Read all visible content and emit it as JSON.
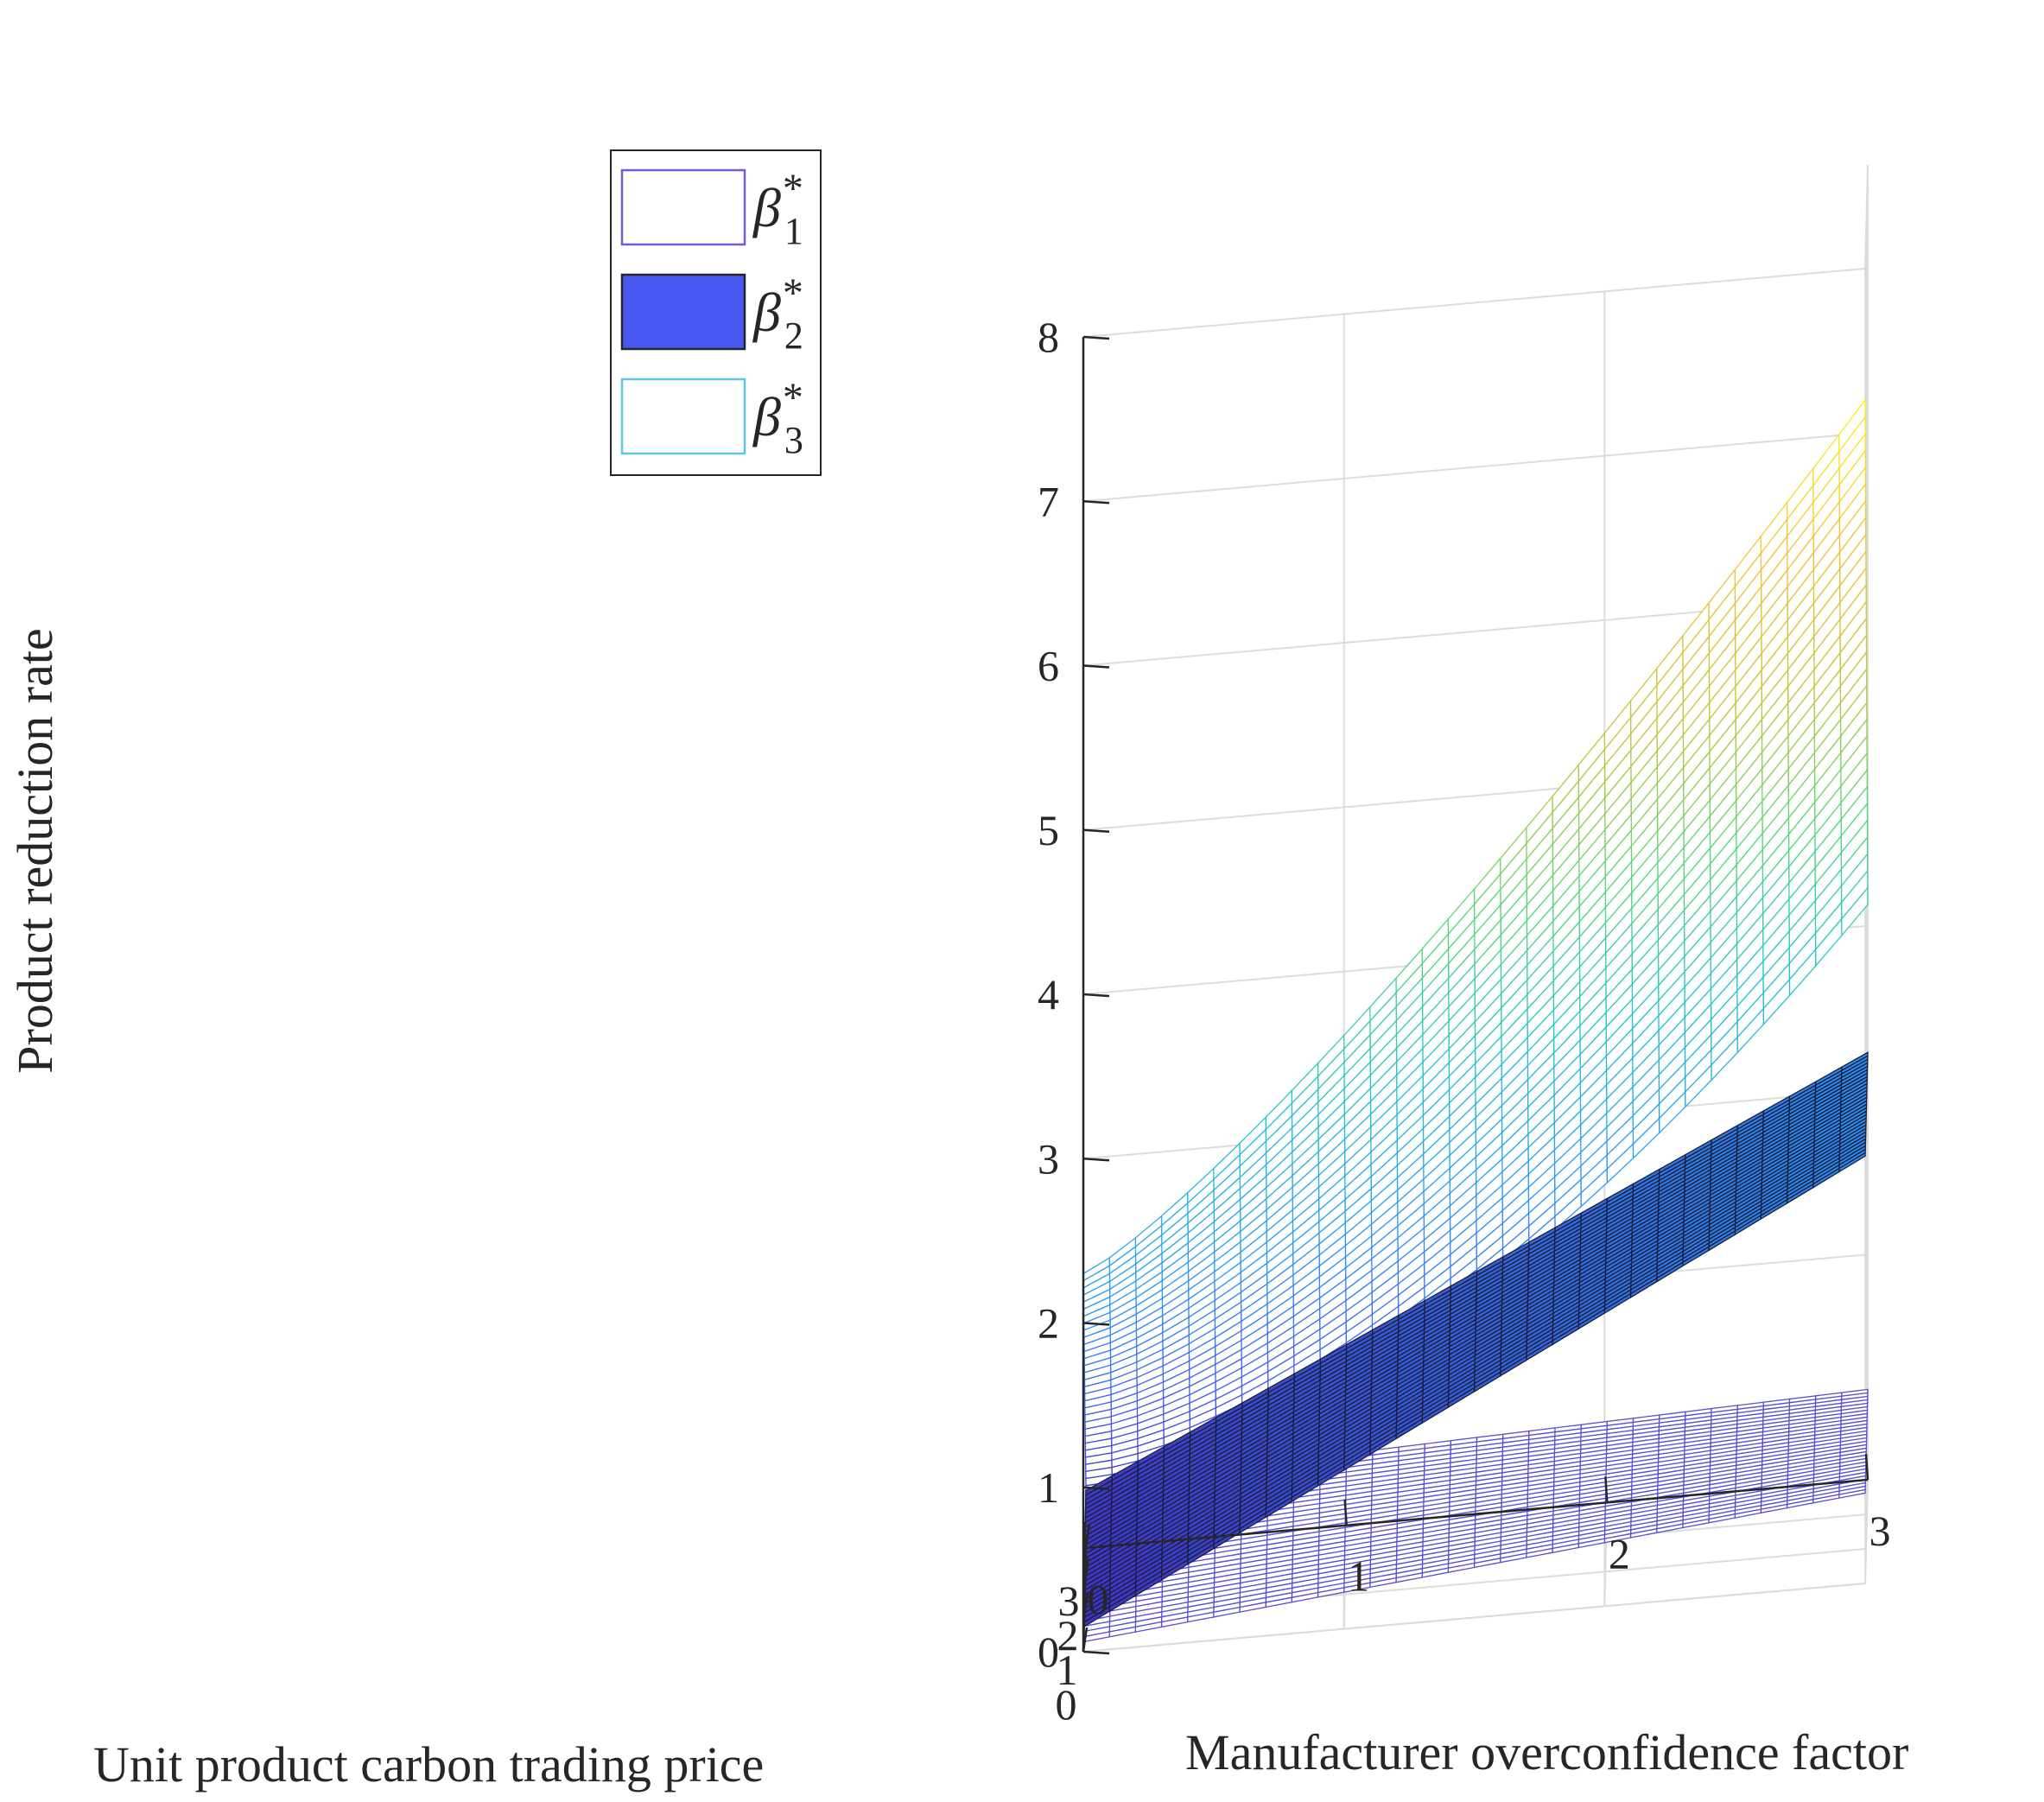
{
  "chart_data": {
    "type": "surface3d",
    "title": "",
    "zlabel": "Product reduction rate",
    "xlabel": "Unit product carbon trading price",
    "ylabel": "Manufacturer overconfidence factor",
    "x_ticks": [
      "0",
      "1",
      "2",
      "3"
    ],
    "y_ticks": [
      "0",
      "1",
      "2",
      "3"
    ],
    "z_ticks": [
      "0",
      "1",
      "2",
      "3",
      "4",
      "5",
      "6",
      "7",
      "8"
    ],
    "xlim": [
      0,
      3
    ],
    "ylim": [
      0,
      3
    ],
    "zlim": [
      0,
      8
    ],
    "grid": true,
    "legend_position": "top-left",
    "series": [
      {
        "name": "β1*",
        "symbol": "β",
        "sup": "*",
        "sub": "1",
        "style": "mesh",
        "color": "#6b5fd6",
        "corner_values": {
          "x0_y0": 0.38,
          "x3_y0": 0.06,
          "x0_y3": 0.55,
          "x3_y3": 0.55
        }
      },
      {
        "name": "β2*",
        "symbol": "β",
        "sup": "*",
        "sub": "2",
        "style": "filled-surface",
        "color": "#4757f2",
        "corner_values": {
          "x0_y0": 0.35,
          "x3_y0": 0.15,
          "x0_y3": 2.6,
          "x3_y3": 2.6
        }
      },
      {
        "name": "β3*",
        "symbol": "β",
        "sup": "*",
        "sub": "3",
        "style": "mesh-colormap",
        "color": "#5fc5e6",
        "corner_values": {
          "x0_y0": 0.38,
          "x3_y0": 2.3,
          "x0_y3": 3.5,
          "x3_y3": 7.2
        }
      }
    ],
    "colormap": [
      "#3e26a8",
      "#4760f0",
      "#2e9df5",
      "#23c7c9",
      "#55d97a",
      "#c4c53a",
      "#f2c23a",
      "#f9fb15"
    ]
  }
}
